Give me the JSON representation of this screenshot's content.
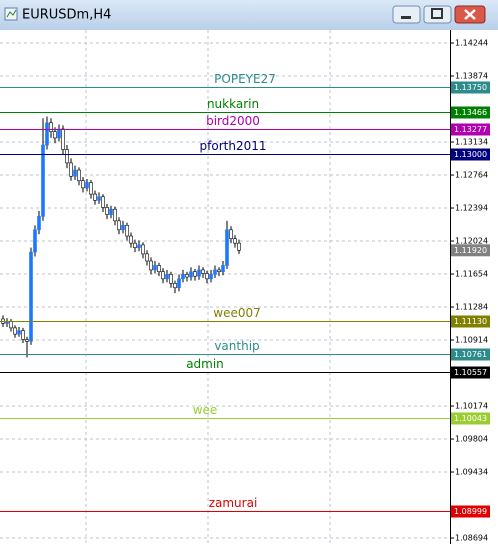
{
  "chart_data": {
    "type": "candlestick",
    "title": "EURUSDm,H4",
    "ylim": [
      1.08627,
      1.1439
    ],
    "yticks": [
      1.14244,
      1.13874,
      1.13134,
      1.12764,
      1.12394,
      1.12024,
      1.11654,
      1.11284,
      1.10914,
      1.10174,
      1.09804,
      1.09434,
      1.08694
    ],
    "grid": true,
    "bull_color": "#1e78ff",
    "bear_color": "#ffffff",
    "wick_color": "#000000",
    "candles": [
      [
        1.1115,
        1.1119,
        1.1106,
        1.111
      ],
      [
        1.111,
        1.1116,
        1.1106,
        1.1112
      ],
      [
        1.1112,
        1.1115,
        1.1101,
        1.1105
      ],
      [
        1.1105,
        1.1108,
        1.1094,
        1.1098
      ],
      [
        1.1098,
        1.1106,
        1.1095,
        1.1102
      ],
      [
        1.1102,
        1.1105,
        1.1088,
        1.1092
      ],
      [
        1.1092,
        1.1095,
        1.1072,
        1.109
      ],
      [
        1.109,
        1.1195,
        1.1086,
        1.119
      ],
      [
        1.119,
        1.122,
        1.1185,
        1.1215
      ],
      [
        1.1215,
        1.1236,
        1.121,
        1.123
      ],
      [
        1.123,
        1.134,
        1.1225,
        1.131
      ],
      [
        1.131,
        1.1342,
        1.1305,
        1.1335
      ],
      [
        1.1335,
        1.134,
        1.1318,
        1.1325
      ],
      [
        1.1325,
        1.133,
        1.1312,
        1.1318
      ],
      [
        1.1318,
        1.1333,
        1.1314,
        1.1328
      ],
      [
        1.1328,
        1.1332,
        1.13,
        1.1305
      ],
      [
        1.1305,
        1.131,
        1.1284,
        1.129
      ],
      [
        1.129,
        1.1295,
        1.127,
        1.1275
      ],
      [
        1.1275,
        1.1287,
        1.1271,
        1.1282
      ],
      [
        1.1282,
        1.1285,
        1.1265,
        1.127
      ],
      [
        1.127,
        1.1274,
        1.1257,
        1.1262
      ],
      [
        1.1262,
        1.1272,
        1.1258,
        1.1268
      ],
      [
        1.1268,
        1.1271,
        1.125,
        1.1255
      ],
      [
        1.1255,
        1.1259,
        1.1243,
        1.1248
      ],
      [
        1.1248,
        1.1257,
        1.1244,
        1.1252
      ],
      [
        1.1252,
        1.1255,
        1.1235,
        1.124
      ],
      [
        1.124,
        1.1244,
        1.1227,
        1.1232
      ],
      [
        1.1232,
        1.1242,
        1.1228,
        1.1238
      ],
      [
        1.1238,
        1.1241,
        1.122,
        1.1225
      ],
      [
        1.1225,
        1.1229,
        1.121,
        1.1215
      ],
      [
        1.1215,
        1.1225,
        1.1211,
        1.122
      ],
      [
        1.122,
        1.1223,
        1.1203,
        1.1208
      ],
      [
        1.1208,
        1.1212,
        1.1195,
        1.12
      ],
      [
        1.12,
        1.1204,
        1.119,
        1.1195
      ],
      [
        1.1195,
        1.1203,
        1.1191,
        1.1198
      ],
      [
        1.1198,
        1.1201,
        1.1183,
        1.1188
      ],
      [
        1.1188,
        1.1192,
        1.1175,
        1.118
      ],
      [
        1.118,
        1.1184,
        1.1165,
        1.117
      ],
      [
        1.117,
        1.118,
        1.1166,
        1.1175
      ],
      [
        1.1175,
        1.1178,
        1.1163,
        1.1168
      ],
      [
        1.1168,
        1.1172,
        1.1155,
        1.116
      ],
      [
        1.116,
        1.117,
        1.1156,
        1.1165
      ],
      [
        1.1165,
        1.1168,
        1.115,
        1.1155
      ],
      [
        1.1155,
        1.1158,
        1.1144,
        1.115
      ],
      [
        1.115,
        1.1165,
        1.1146,
        1.116
      ],
      [
        1.116,
        1.117,
        1.1156,
        1.1165
      ],
      [
        1.1165,
        1.1168,
        1.1157,
        1.1162
      ],
      [
        1.1162,
        1.1173,
        1.1158,
        1.1168
      ],
      [
        1.1168,
        1.1171,
        1.1158,
        1.1163
      ],
      [
        1.1163,
        1.1175,
        1.1159,
        1.117
      ],
      [
        1.117,
        1.1173,
        1.1161,
        1.1166
      ],
      [
        1.1166,
        1.1169,
        1.1155,
        1.116
      ],
      [
        1.116,
        1.117,
        1.1156,
        1.1165
      ],
      [
        1.1165,
        1.1175,
        1.1161,
        1.117
      ],
      [
        1.117,
        1.1173,
        1.1163,
        1.1168
      ],
      [
        1.1168,
        1.118,
        1.1164,
        1.1175
      ],
      [
        1.1175,
        1.1225,
        1.1171,
        1.1215
      ],
      [
        1.1215,
        1.1219,
        1.12,
        1.1205
      ],
      [
        1.1205,
        1.1209,
        1.1195,
        1.12
      ],
      [
        1.12,
        1.1204,
        1.1188,
        1.1192
      ]
    ],
    "current_price": {
      "value": 1.1192,
      "label": "1.11920"
    },
    "current_color": "#808080",
    "lines": [
      {
        "name": "POPEYE27",
        "price": {
          "value": 1.1375,
          "label": "1.13750"
        },
        "color": "#2e8b8b"
      },
      {
        "name": "nukkarin",
        "price": 1.13466,
        "color": "#008000"
      },
      {
        "name": "bird2000",
        "price": 1.13277,
        "color": "#b000b0"
      },
      {
        "name": "pforth2011",
        "price": {
          "value": 1.13,
          "label": "1.13000"
        },
        "color": "#000080"
      },
      {
        "name": "wee007",
        "price": {
          "value": 1.1113,
          "label": "1.11130"
        },
        "color": "#808000"
      },
      {
        "name": "vanthip",
        "price": 1.10761,
        "color": "#2e8b8b"
      },
      {
        "name": "admin",
        "price": 1.10557,
        "color": "#000000"
      },
      {
        "name": "wee",
        "price": 1.10043,
        "color": "#9acd32"
      },
      {
        "name": "zamurai",
        "price": 1.08999,
        "color": "#e00000"
      }
    ]
  }
}
